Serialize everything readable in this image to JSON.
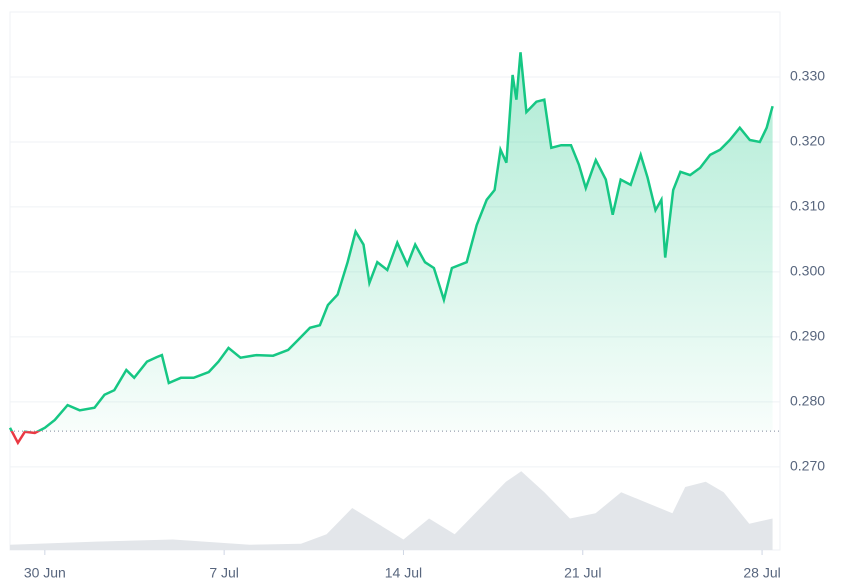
{
  "chart_data": {
    "type": "line",
    "x": [
      -1.36,
      -1.05,
      -0.78,
      -0.39,
      0,
      0.39,
      0.89,
      1.36,
      1.94,
      2.33,
      2.71,
      3.18,
      3.49,
      3.99,
      4.38,
      4.57,
      4.84,
      5.31,
      5.81,
      6.4,
      6.78,
      7.17,
      7.64,
      8.26,
      8.91,
      9.5,
      9.88,
      10.35,
      10.74,
      11.05,
      11.43,
      11.82,
      12.13,
      12.44,
      12.67,
      12.98,
      13.37,
      13.76,
      14.15,
      14.46,
      14.84,
      15.19,
      15.58,
      15.89,
      16.47,
      16.86,
      17.25,
      17.56,
      17.79,
      18.02,
      18.26,
      18.41,
      18.57,
      18.8,
      19.19,
      19.5,
      19.77,
      20.16,
      20.54,
      20.85,
      21.12,
      21.51,
      21.9,
      22.17,
      22.48,
      22.87,
      23.26,
      23.53,
      23.84,
      24.07,
      24.22,
      24.53,
      24.81,
      25.19,
      25.58,
      25.97,
      26.36,
      26.74,
      27.13,
      27.52,
      27.91,
      28.18,
      28.41
    ],
    "series": [
      {
        "color": "#16c784",
        "values": [
          0.276,
          0.2737,
          0.2754,
          0.2752,
          0.276,
          0.2772,
          0.2795,
          0.2787,
          0.2791,
          0.2811,
          0.2818,
          0.2849,
          0.2837,
          0.2862,
          0.2869,
          0.2872,
          0.2829,
          0.2837,
          0.2837,
          0.2846,
          0.2862,
          0.2883,
          0.2868,
          0.2872,
          0.2871,
          0.288,
          0.2895,
          0.2914,
          0.2918,
          0.2949,
          0.2965,
          0.3015,
          0.3062,
          0.3042,
          0.2983,
          0.3015,
          0.3003,
          0.3045,
          0.3011,
          0.3042,
          0.3015,
          0.3006,
          0.2957,
          0.3006,
          0.3015,
          0.3072,
          0.3111,
          0.3126,
          0.3188,
          0.3168,
          0.3303,
          0.3265,
          0.3338,
          0.3246,
          0.3262,
          0.3265,
          0.3191,
          0.3195,
          0.3195,
          0.3165,
          0.3129,
          0.3172,
          0.3142,
          0.3088,
          0.3142,
          0.3134,
          0.318,
          0.3145,
          0.3095,
          0.3111,
          0.3022,
          0.3126,
          0.3154,
          0.3149,
          0.316,
          0.318,
          0.3188,
          0.3203,
          0.3222,
          0.3203,
          0.32,
          0.3222,
          0.3255
        ]
      }
    ],
    "below_color": "#ea3943",
    "baseline": 0.2755,
    "volume": {
      "color": "#e3e6ea",
      "x": [
        -1.36,
        2,
        5,
        8,
        10,
        11,
        12,
        13,
        14,
        15,
        16,
        17,
        18,
        18.6,
        19.5,
        20.5,
        21.5,
        22.5,
        23.5,
        24.5,
        25,
        25.8,
        26.5,
        27.5,
        28.41
      ],
      "values": [
        5,
        8,
        10,
        5,
        6,
        15,
        40,
        25,
        10,
        30,
        15,
        40,
        65,
        75,
        55,
        30,
        35,
        55,
        45,
        35,
        60,
        65,
        55,
        25,
        30
      ],
      "lim": [
        0,
        100
      ]
    },
    "xlim": [
      -1.36,
      28.7
    ],
    "xticks": [
      {
        "value": 0,
        "label": "30 Jun"
      },
      {
        "value": 7,
        "label": "7 Jul"
      },
      {
        "value": 14,
        "label": "14 Jul"
      },
      {
        "value": 21,
        "label": "21 Jul"
      },
      {
        "value": 28,
        "label": "28 Jul"
      }
    ],
    "ylim": [
      0.2572,
      0.34
    ],
    "yticks": [
      {
        "value": 0.27,
        "label": "0.270"
      },
      {
        "value": 0.28,
        "label": "0.280"
      },
      {
        "value": 0.29,
        "label": "0.290"
      },
      {
        "value": 0.3,
        "label": "0.300"
      },
      {
        "value": 0.31,
        "label": "0.310"
      },
      {
        "value": 0.32,
        "label": "0.320"
      },
      {
        "value": 0.33,
        "label": "0.330"
      }
    ],
    "grid": true
  }
}
